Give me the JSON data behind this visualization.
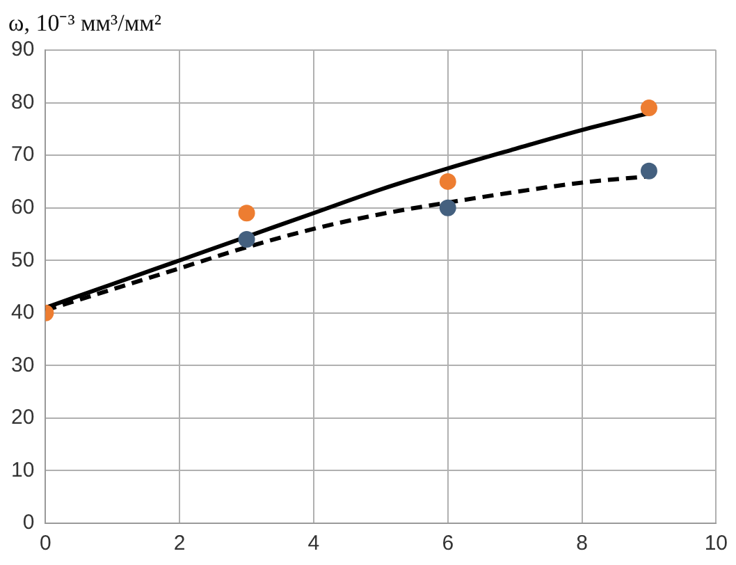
{
  "chart_data": {
    "type": "scatter",
    "ylabel": "ω, 10⁻³ мм³/мм²",
    "xlim": [
      0,
      10
    ],
    "xticks": [
      0,
      2,
      4,
      6,
      8,
      10
    ],
    "ylim": [
      0,
      90
    ],
    "yticks": [
      0,
      10,
      20,
      30,
      40,
      50,
      60,
      70,
      80,
      90
    ],
    "grid": true,
    "legend": false,
    "series": [
      {
        "type": "line",
        "color": "#000000",
        "line_style": "solid",
        "marker": "none",
        "x": [
          0,
          1,
          2,
          3,
          4,
          5,
          6,
          7,
          8,
          9
        ],
        "values": [
          41,
          45.5,
          50,
          54.5,
          59,
          63.5,
          67.5,
          71.2,
          74.8,
          78
        ]
      },
      {
        "type": "line",
        "color": "#000000",
        "line_style": "dashed",
        "marker": "none",
        "x": [
          0,
          1,
          2,
          3,
          4,
          5,
          6,
          7,
          8,
          9
        ],
        "values": [
          40.5,
          44.5,
          48.5,
          52.5,
          56,
          58.8,
          61,
          63,
          64.8,
          66
        ]
      },
      {
        "type": "scatter",
        "color": "#44607f",
        "marker": "circle",
        "x": [
          3,
          6,
          9
        ],
        "values": [
          54,
          60,
          67
        ]
      },
      {
        "type": "scatter",
        "color": "#ed7d31",
        "marker": "circle",
        "x": [
          0,
          3,
          6,
          9
        ],
        "values": [
          40,
          59,
          65,
          79
        ]
      }
    ]
  }
}
